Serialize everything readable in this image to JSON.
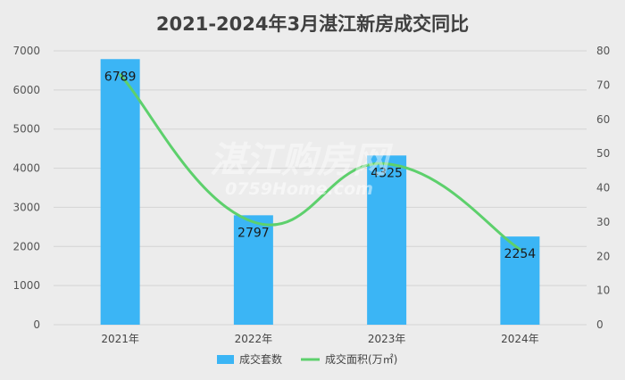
{
  "chart_data": {
    "type": "bar",
    "title": "2021-2024年3月湛江新房成交同比",
    "categories": [
      "2021年",
      "2022年",
      "2023年",
      "2024年"
    ],
    "series": [
      {
        "name": "成交套数",
        "type": "bar",
        "axis": "left",
        "color": "#3bb5f5",
        "values": [
          6789,
          2797,
          4325,
          2254
        ]
      },
      {
        "name": "成交面积(万㎡)",
        "type": "line",
        "axis": "right",
        "smooth": true,
        "color": "#5dd06c",
        "values": [
          73,
          30,
          47,
          22
        ]
      }
    ],
    "y_left": {
      "min": 0,
      "max": 7000,
      "ticks": [
        "0",
        "1000",
        "2000",
        "3000",
        "4000",
        "5000",
        "6000",
        "7000"
      ]
    },
    "y_right": {
      "min": 0,
      "max": 80,
      "ticks": [
        "0",
        "10",
        "20",
        "30",
        "40",
        "50",
        "60",
        "70",
        "80"
      ]
    },
    "data_labels": [
      "6789",
      "2797",
      "4325",
      "2254"
    ],
    "grid": true,
    "legend_position": "bottom",
    "watermark": {
      "line1": "湛江购房网",
      "line2": "0759Home.com"
    }
  }
}
